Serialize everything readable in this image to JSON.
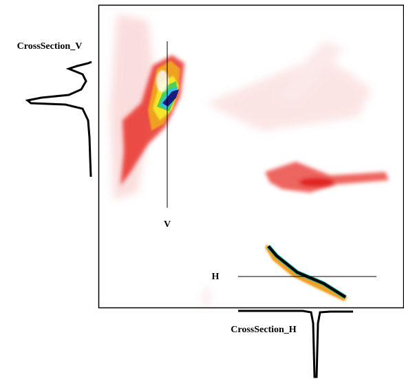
{
  "labels": {
    "cross_section_v": "CrossSection_V",
    "cross_section_h": "CrossSection_H",
    "line_v": "V",
    "line_h": "H"
  }
}
